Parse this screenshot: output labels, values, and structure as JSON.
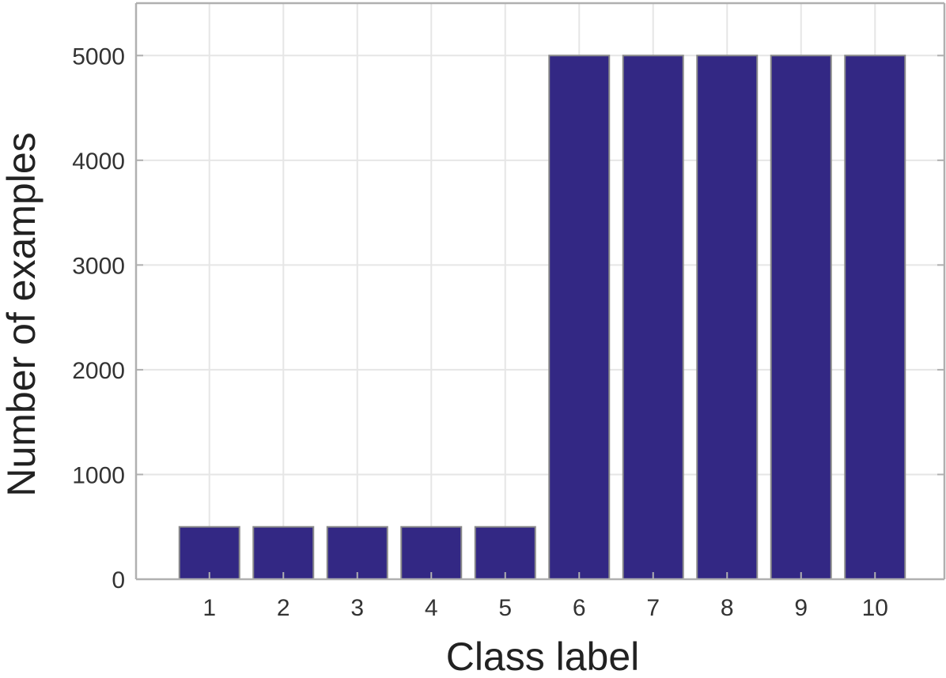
{
  "chart_data": {
    "type": "bar",
    "categories": [
      "1",
      "2",
      "3",
      "4",
      "5",
      "6",
      "7",
      "8",
      "9",
      "10"
    ],
    "values": [
      500,
      500,
      500,
      500,
      500,
      5000,
      5000,
      5000,
      5000,
      5000
    ],
    "title": "",
    "xlabel": "Class label",
    "ylabel": "Number of examples",
    "ylim": [
      0,
      5500
    ],
    "yticks": [
      0,
      1000,
      2000,
      3000,
      4000,
      5000
    ],
    "ytick_labels": [
      "0",
      "1000",
      "2000",
      "3000",
      "4000",
      "5000"
    ],
    "grid": true,
    "colors": {
      "bar": "#332884",
      "bar_edge": "#8a8a8a",
      "grid": "#e6e6e6",
      "axis": "#b0b0b0"
    }
  }
}
